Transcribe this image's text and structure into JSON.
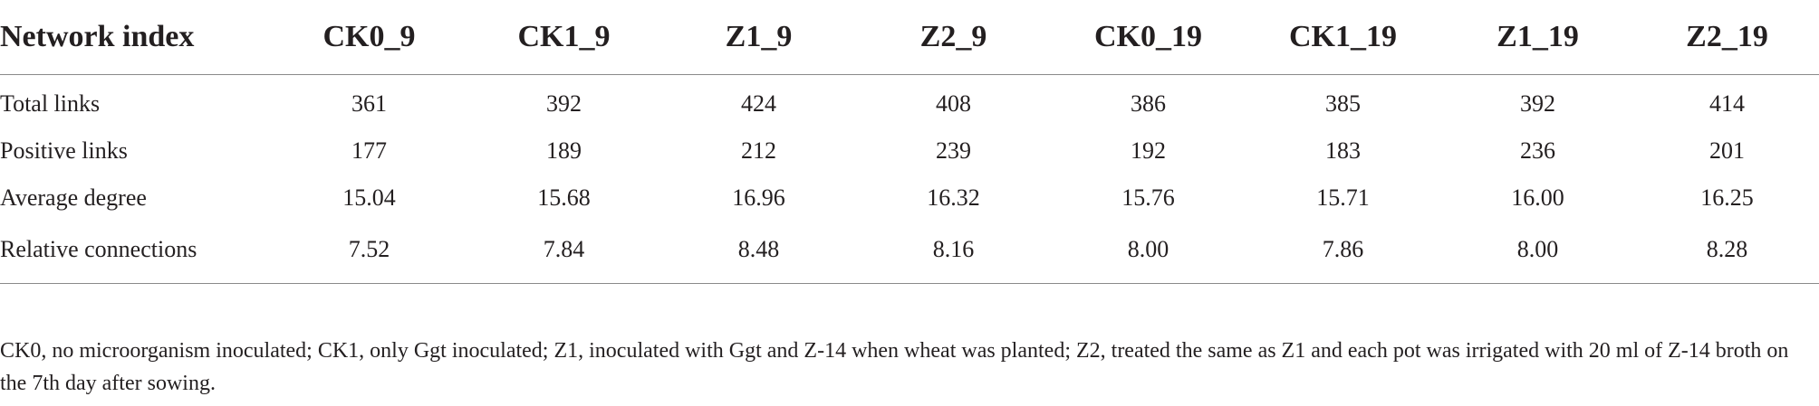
{
  "table": {
    "headers": [
      "Network index",
      "CK0_9",
      "CK1_9",
      "Z1_9",
      "Z2_9",
      "CK0_19",
      "CK1_19",
      "Z1_19",
      "Z2_19"
    ],
    "rows": [
      [
        "Total links",
        "361",
        "392",
        "424",
        "408",
        "386",
        "385",
        "392",
        "414"
      ],
      [
        "Positive links",
        "177",
        "189",
        "212",
        "239",
        "192",
        "183",
        "236",
        "201"
      ],
      [
        "Average degree",
        "15.04",
        "15.68",
        "16.96",
        "16.32",
        "15.76",
        "15.71",
        "16.00",
        "16.25"
      ],
      [
        "Relative connections",
        "7.52",
        "7.84",
        "8.48",
        "8.16",
        "8.00",
        "7.86",
        "8.00",
        "8.28"
      ]
    ]
  },
  "footnote": "CK0, no microorganism inoculated; CK1, only Ggt inoculated; Z1, inoculated with Ggt and Z-14 when wheat was planted; Z2, treated the same as Z1 and each pot was irrigated with 20 ml of Z-14 broth on the 7th day after sowing."
}
